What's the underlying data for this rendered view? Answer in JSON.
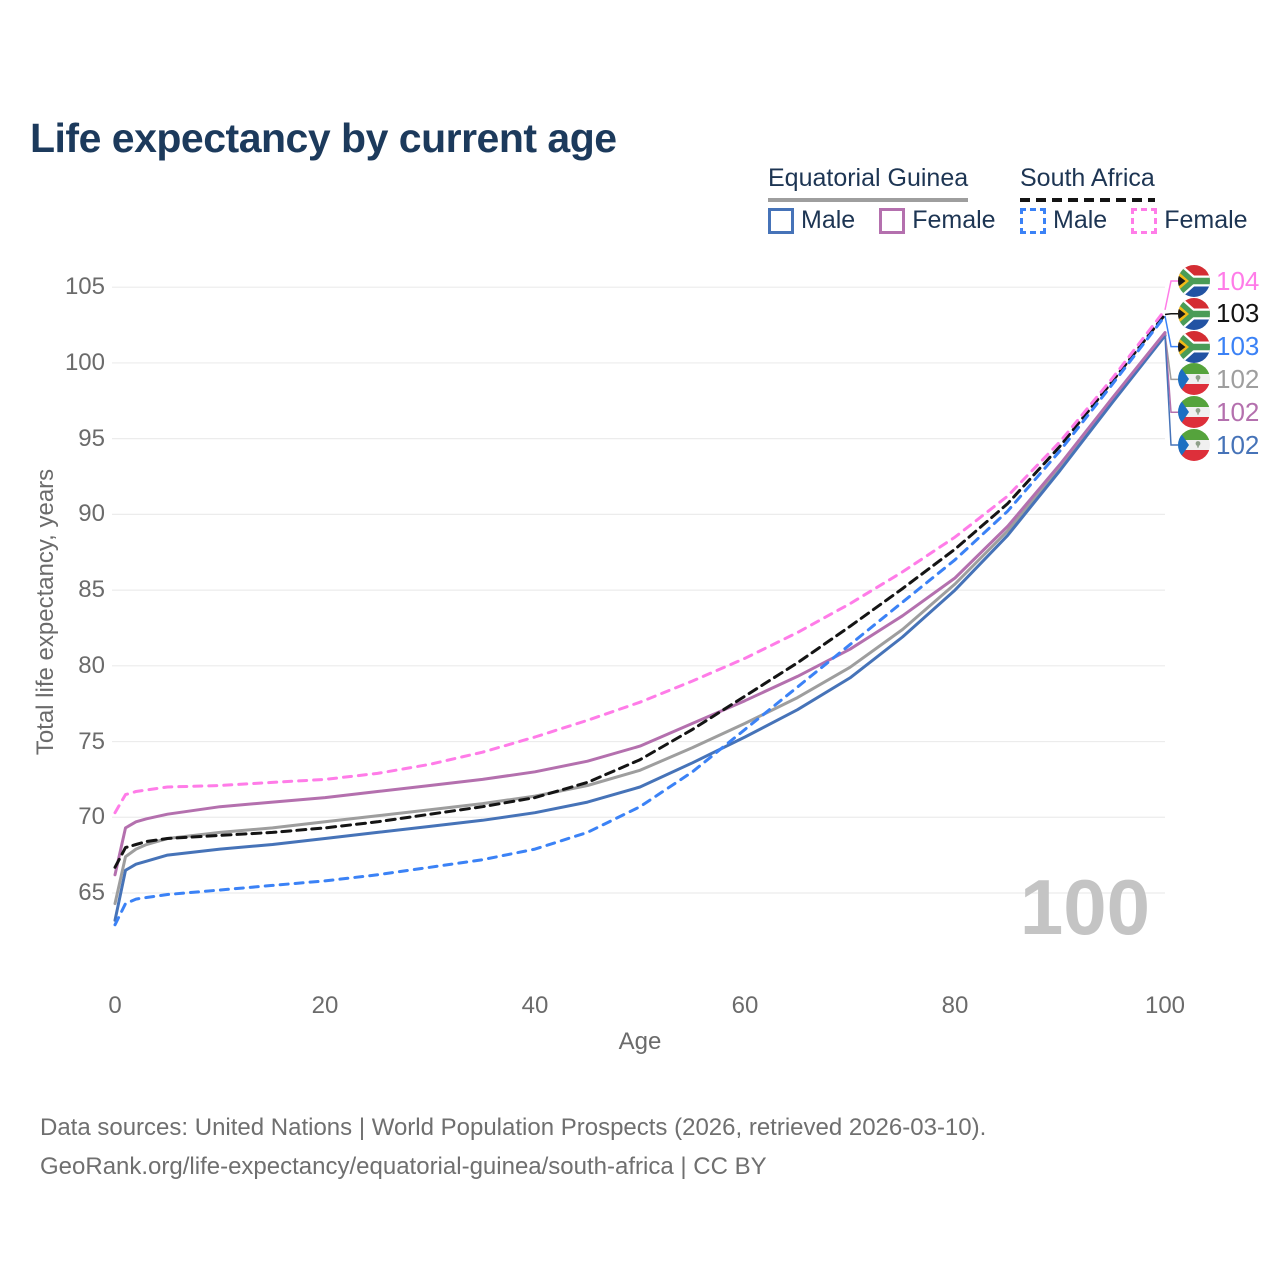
{
  "title": "Life expectancy by current age",
  "legend": {
    "groups": [
      {
        "title": "Equatorial Guinea",
        "style": "solid",
        "items": [
          {
            "label": "Male",
            "color": "#4673b8"
          },
          {
            "label": "Female",
            "color": "#b470ae"
          }
        ]
      },
      {
        "title": "South Africa",
        "style": "dashed",
        "items": [
          {
            "label": "Male",
            "color": "#3b82f6"
          },
          {
            "label": "Female",
            "color": "#ff7ce8"
          }
        ]
      }
    ]
  },
  "watermark": "100",
  "footer": {
    "line1": "Data sources: United Nations | World Population Prospects (2026, retrieved 2026-03-10).",
    "line2": "GeoRank.org/life-expectancy/equatorial-guinea/south-africa | CC BY"
  },
  "chart_data": {
    "type": "line",
    "x_axis": {
      "title": "Age",
      "ticks": [
        0,
        20,
        40,
        60,
        80,
        100
      ],
      "range": [
        0,
        100
      ]
    },
    "y_axis": {
      "title": "Total life expectancy, years",
      "ticks": [
        65,
        70,
        75,
        80,
        85,
        90,
        95,
        100,
        105
      ],
      "range": [
        65,
        105
      ],
      "grid": true
    },
    "ages": [
      0,
      1,
      2,
      3,
      5,
      10,
      15,
      20,
      25,
      30,
      35,
      40,
      45,
      50,
      55,
      60,
      65,
      70,
      75,
      80,
      85,
      90,
      95,
      100
    ],
    "series": [
      {
        "id": "eg-total",
        "country": "Equatorial Guinea",
        "sex": "Total",
        "color": "#9e9e9e",
        "dash": null,
        "values": [
          64.3,
          67.4,
          67.9,
          68.2,
          68.6,
          69.0,
          69.3,
          69.7,
          70.1,
          70.5,
          70.9,
          71.4,
          72.1,
          73.1,
          74.6,
          76.2,
          77.9,
          79.9,
          82.4,
          85.4,
          88.9,
          93.1,
          97.5,
          101.9
        ]
      },
      {
        "id": "eg-male",
        "country": "Equatorial Guinea",
        "sex": "Male",
        "color": "#4673b8",
        "dash": null,
        "values": [
          63.2,
          66.5,
          66.9,
          67.1,
          67.5,
          67.9,
          68.2,
          68.6,
          69.0,
          69.4,
          69.8,
          70.3,
          71.0,
          72.0,
          73.6,
          75.3,
          77.1,
          79.2,
          81.9,
          85.0,
          88.6,
          92.9,
          97.4,
          101.8
        ]
      },
      {
        "id": "eg-female",
        "country": "Equatorial Guinea",
        "sex": "Female",
        "color": "#b470ae",
        "dash": null,
        "values": [
          66.2,
          69.3,
          69.7,
          69.9,
          70.2,
          70.7,
          71.0,
          71.3,
          71.7,
          72.1,
          72.5,
          73.0,
          73.7,
          74.7,
          76.2,
          77.7,
          79.3,
          81.1,
          83.3,
          85.8,
          89.2,
          93.3,
          97.7,
          102.0
        ]
      },
      {
        "id": "sa-total",
        "country": "South Africa",
        "sex": "Total",
        "color": "#141414",
        "dash": "9 6",
        "values": [
          66.7,
          68.0,
          68.2,
          68.4,
          68.6,
          68.8,
          69.0,
          69.3,
          69.7,
          70.2,
          70.7,
          71.3,
          72.3,
          73.8,
          75.8,
          78.0,
          80.2,
          82.6,
          85.1,
          87.7,
          90.7,
          94.5,
          98.8,
          103.2
        ]
      },
      {
        "id": "sa-male",
        "country": "South Africa",
        "sex": "Male",
        "color": "#3b82f6",
        "dash": "8 7",
        "values": [
          62.9,
          64.3,
          64.6,
          64.7,
          64.9,
          65.2,
          65.5,
          65.8,
          66.2,
          66.7,
          67.2,
          67.9,
          69.0,
          70.7,
          73.0,
          75.8,
          78.6,
          81.4,
          84.2,
          87.0,
          90.2,
          94.2,
          98.6,
          103.1
        ]
      },
      {
        "id": "sa-female",
        "country": "South Africa",
        "sex": "Female",
        "color": "#ff7ce8",
        "dash": "8 7",
        "values": [
          70.3,
          71.5,
          71.7,
          71.8,
          72.0,
          72.1,
          72.3,
          72.5,
          72.9,
          73.5,
          74.3,
          75.3,
          76.4,
          77.6,
          79.0,
          80.5,
          82.2,
          84.1,
          86.2,
          88.5,
          91.2,
          94.8,
          99.0,
          103.5
        ]
      }
    ],
    "end_labels": [
      {
        "series": "sa-female",
        "flag": "south-africa",
        "value": "104"
      },
      {
        "series": "sa-total",
        "flag": "south-africa",
        "value": "103"
      },
      {
        "series": "sa-male",
        "flag": "south-africa",
        "value": "103"
      },
      {
        "series": "eg-total",
        "flag": "equatorial-guinea",
        "value": "102"
      },
      {
        "series": "eg-female",
        "flag": "equatorial-guinea",
        "value": "102"
      },
      {
        "series": "eg-male",
        "flag": "equatorial-guinea",
        "value": "102"
      }
    ]
  }
}
